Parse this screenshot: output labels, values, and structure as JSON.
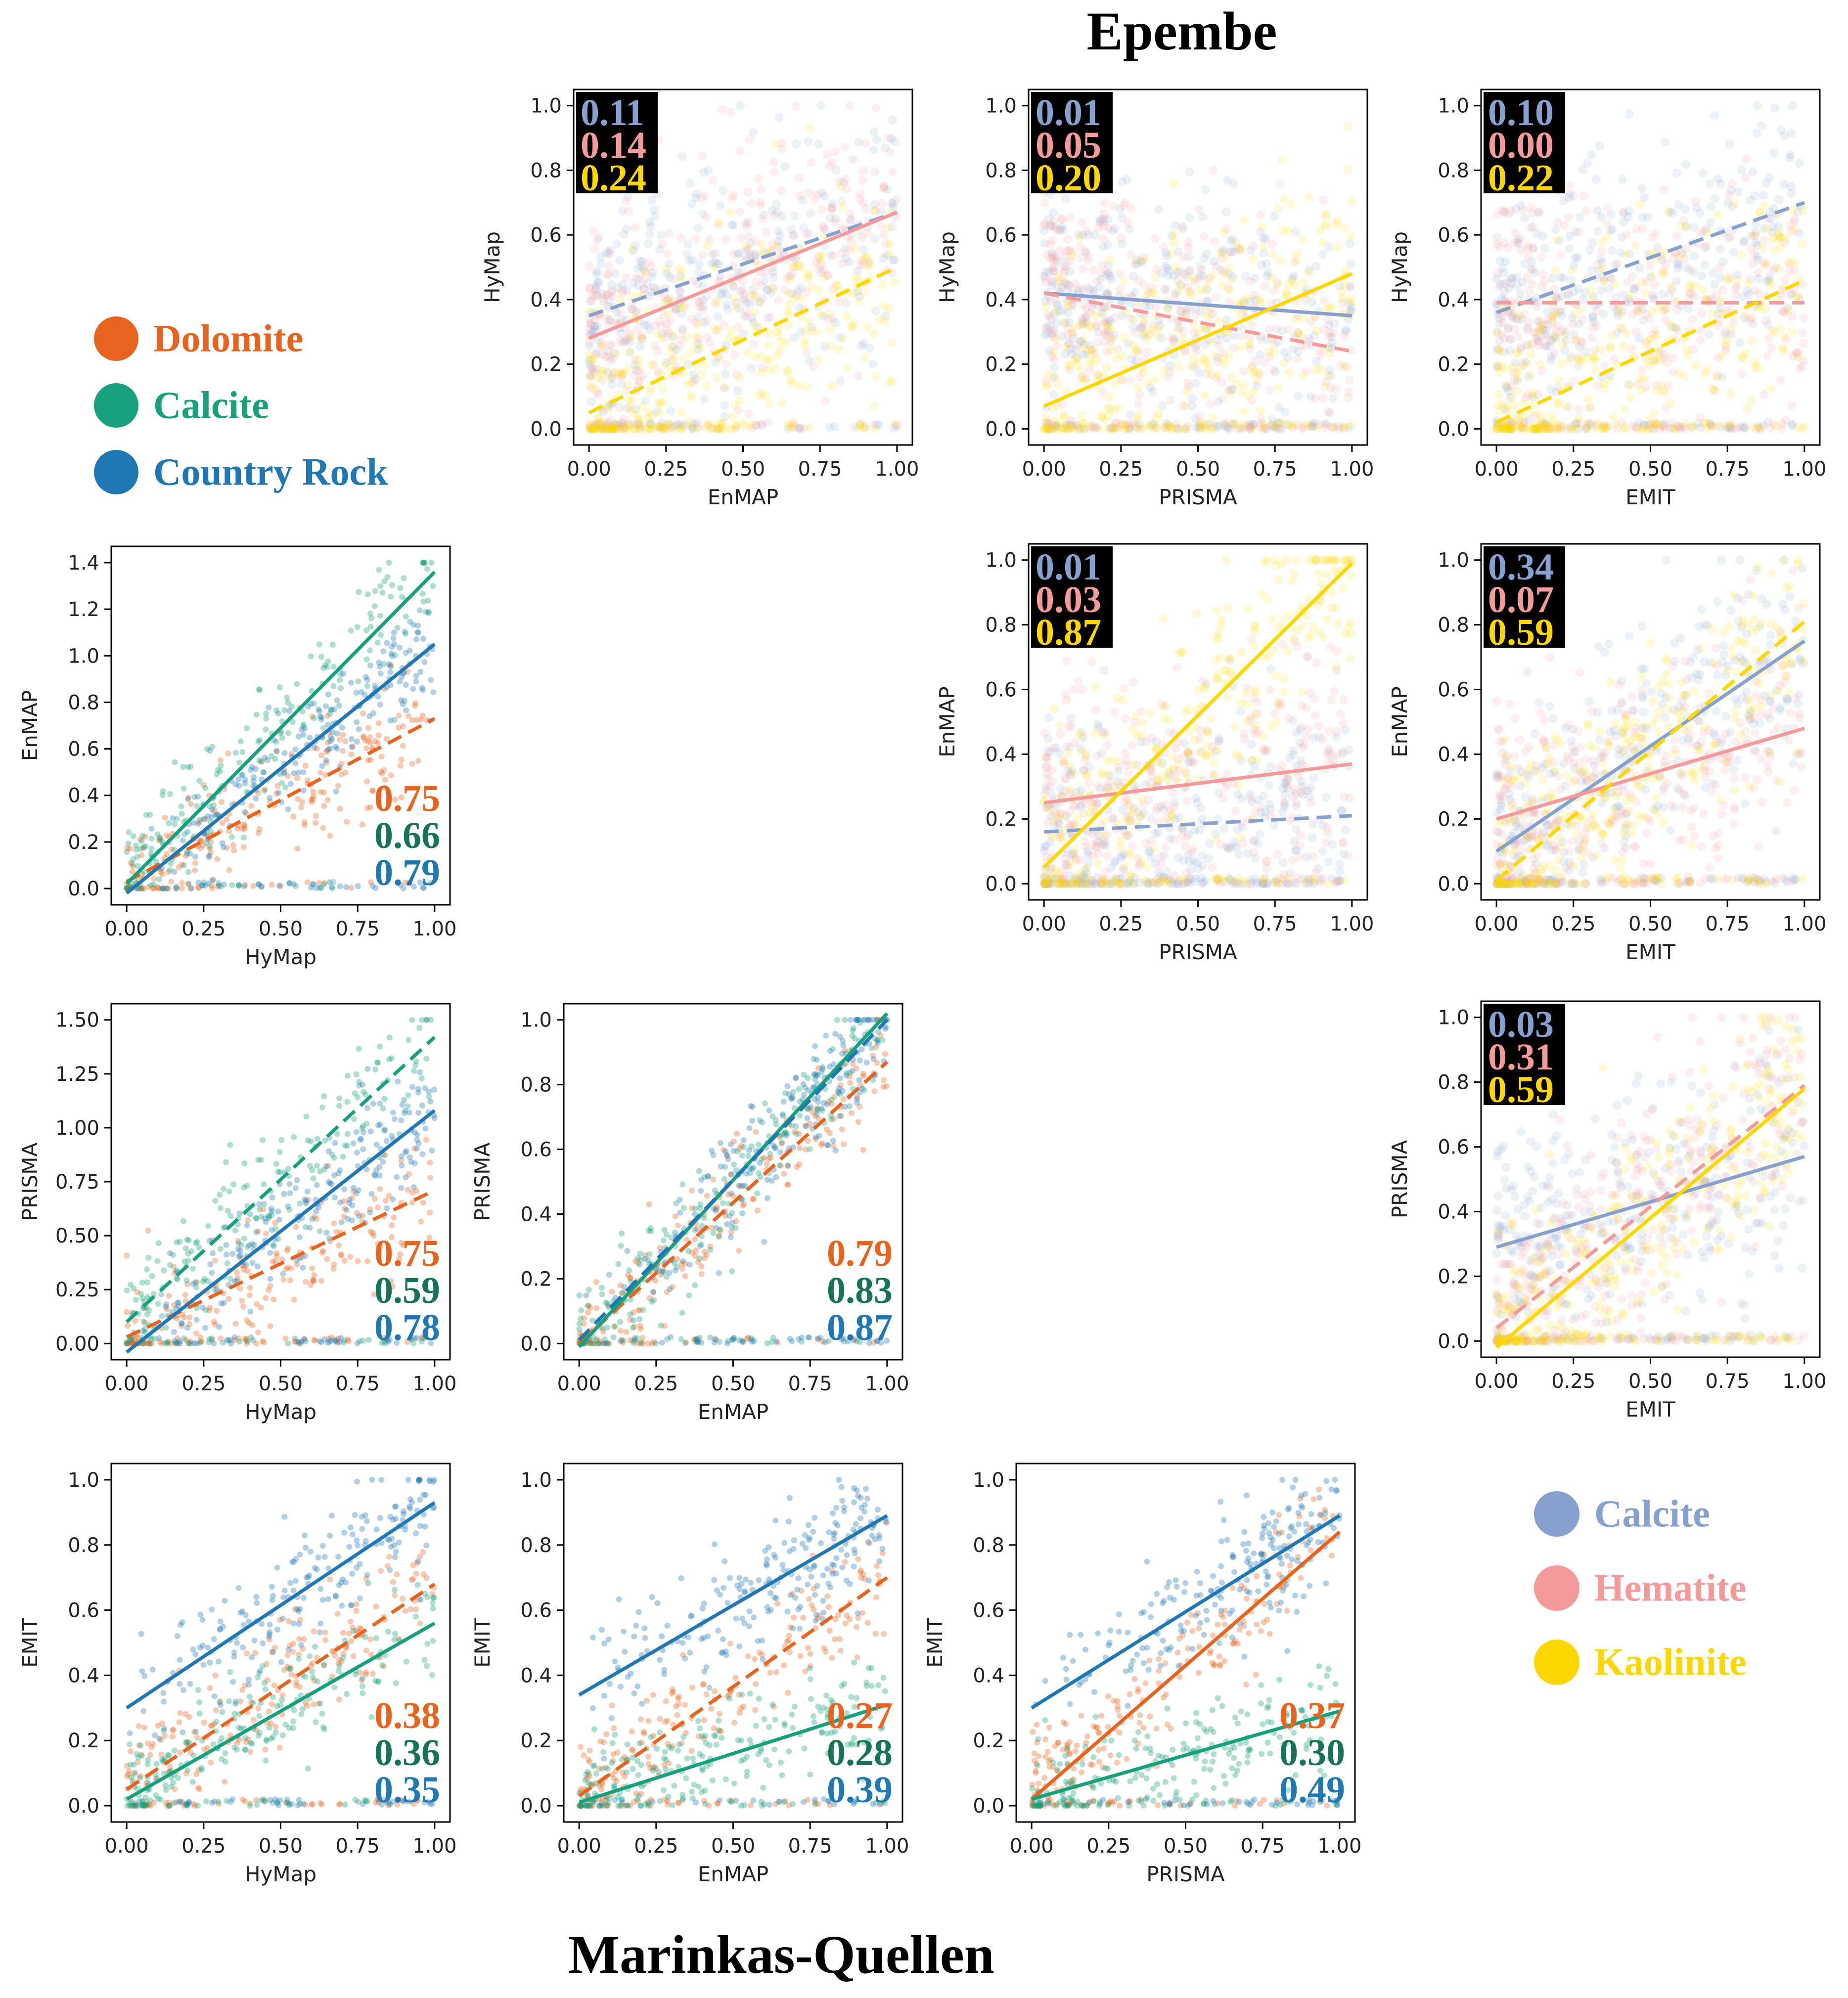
{
  "titles": {
    "top": "Epembe",
    "bottom": "Marinkas-Quellen"
  },
  "legends": {
    "marinkas": {
      "items": [
        {
          "label": "Dolomite",
          "color": "#e8641e"
        },
        {
          "label": "Calcite",
          "color": "#16a07c"
        },
        {
          "label": "Country Rock",
          "color": "#1f77b4"
        }
      ]
    },
    "epembe": {
      "items": [
        {
          "label": "Calcite",
          "color": "#86a0d0"
        },
        {
          "label": "Hematite",
          "color": "#f59a9a"
        },
        {
          "label": "Kaolinite",
          "color": "#ffd700"
        }
      ]
    }
  },
  "chart_data": [
    {
      "id": "epembe-enmap-hymap",
      "site": "Epembe",
      "type": "scatter",
      "xlabel": "EnMAP",
      "ylabel": "HyMap",
      "xlim": [
        0,
        1
      ],
      "ylim": [
        0,
        1
      ],
      "xticks": [
        "0.00",
        "0.25",
        "0.50",
        "0.75",
        "1.00"
      ],
      "yticks": [
        "0.0",
        "0.2",
        "0.4",
        "0.6",
        "0.8",
        "1.0"
      ],
      "r2_labels": [
        "0.11",
        "0.14",
        "0.24"
      ],
      "r2_colors": [
        "#86a0d0",
        "#f59a9a",
        "#ffd700"
      ],
      "fit_lines": [
        {
          "series": "Calcite",
          "color": "#86a0d0",
          "dashed": true,
          "y0": 0.35,
          "y1": 0.67
        },
        {
          "series": "Hematite",
          "color": "#f59a9a",
          "dashed": false,
          "y0": 0.28,
          "y1": 0.67
        },
        {
          "series": "Kaolinite",
          "color": "#ffd700",
          "dashed": true,
          "y0": 0.05,
          "y1": 0.5
        }
      ]
    },
    {
      "id": "epembe-prisma-hymap",
      "site": "Epembe",
      "type": "scatter",
      "xlabel": "PRISMA",
      "ylabel": "HyMap",
      "xlim": [
        0,
        1
      ],
      "ylim": [
        0,
        1
      ],
      "xticks": [
        "0.00",
        "0.25",
        "0.50",
        "0.75",
        "1.00"
      ],
      "yticks": [
        "0.0",
        "0.2",
        "0.4",
        "0.6",
        "0.8",
        "1.0"
      ],
      "r2_labels": [
        "0.01",
        "0.05",
        "0.20"
      ],
      "r2_colors": [
        "#86a0d0",
        "#f59a9a",
        "#ffd700"
      ],
      "fit_lines": [
        {
          "series": "Calcite",
          "color": "#86a0d0",
          "dashed": false,
          "y0": 0.42,
          "y1": 0.35
        },
        {
          "series": "Hematite",
          "color": "#f59a9a",
          "dashed": true,
          "y0": 0.42,
          "y1": 0.24
        },
        {
          "series": "Kaolinite",
          "color": "#ffd700",
          "dashed": false,
          "y0": 0.07,
          "y1": 0.48
        }
      ]
    },
    {
      "id": "epembe-emit-hymap",
      "site": "Epembe",
      "type": "scatter",
      "xlabel": "EMIT",
      "ylabel": "HyMap",
      "xlim": [
        0,
        1
      ],
      "ylim": [
        0,
        1
      ],
      "xticks": [
        "0.00",
        "0.25",
        "0.50",
        "0.75",
        "1.00"
      ],
      "yticks": [
        "0.0",
        "0.2",
        "0.4",
        "0.6",
        "0.8",
        "1.0"
      ],
      "r2_labels": [
        "0.10",
        "0.00",
        "0.22"
      ],
      "r2_colors": [
        "#86a0d0",
        "#f59a9a",
        "#ffd700"
      ],
      "fit_lines": [
        {
          "series": "Calcite",
          "color": "#86a0d0",
          "dashed": true,
          "y0": 0.36,
          "y1": 0.7
        },
        {
          "series": "Hematite",
          "color": "#f59a9a",
          "dashed": true,
          "y0": 0.39,
          "y1": 0.39
        },
        {
          "series": "Kaolinite",
          "color": "#ffd700",
          "dashed": true,
          "y0": 0.02,
          "y1": 0.46
        }
      ]
    },
    {
      "id": "marinkas-hymap-enmap",
      "site": "Marinkas-Quellen",
      "type": "scatter",
      "xlabel": "HyMap",
      "ylabel": "EnMAP",
      "xlim": [
        0,
        1
      ],
      "ylim": [
        0,
        1.4
      ],
      "xticks": [
        "0.00",
        "0.25",
        "0.50",
        "0.75",
        "1.00"
      ],
      "yticks": [
        "0.0",
        "0.2",
        "0.4",
        "0.6",
        "0.8",
        "1.0",
        "1.2",
        "1.4"
      ],
      "r2_labels": [
        "0.75",
        "0.66",
        "0.79"
      ],
      "r2_colors": [
        "#e8641e",
        "#16735a",
        "#1f77b4"
      ],
      "fit_lines": [
        {
          "series": "Dolomite",
          "color": "#e8641e",
          "dashed": true,
          "y0": 0.03,
          "y1": 0.73
        },
        {
          "series": "Calcite",
          "color": "#16a07c",
          "dashed": false,
          "y0": 0.02,
          "y1": 1.36
        },
        {
          "series": "Country Rock",
          "color": "#1f77b4",
          "dashed": false,
          "y0": -0.02,
          "y1": 1.05
        }
      ]
    },
    {
      "id": "epembe-prisma-enmap",
      "site": "Epembe",
      "type": "scatter",
      "xlabel": "PRISMA",
      "ylabel": "EnMAP",
      "xlim": [
        0,
        1
      ],
      "ylim": [
        0,
        1
      ],
      "xticks": [
        "0.00",
        "0.25",
        "0.50",
        "0.75",
        "1.00"
      ],
      "yticks": [
        "0.0",
        "0.2",
        "0.4",
        "0.6",
        "0.8",
        "1.0"
      ],
      "r2_labels": [
        "0.01",
        "0.03",
        "0.87"
      ],
      "r2_colors": [
        "#86a0d0",
        "#f59a9a",
        "#ffd700"
      ],
      "fit_lines": [
        {
          "series": "Calcite",
          "color": "#86a0d0",
          "dashed": true,
          "y0": 0.16,
          "y1": 0.21
        },
        {
          "series": "Hematite",
          "color": "#f59a9a",
          "dashed": false,
          "y0": 0.25,
          "y1": 0.37
        },
        {
          "series": "Kaolinite",
          "color": "#ffd700",
          "dashed": false,
          "y0": 0.05,
          "y1": 0.99
        }
      ]
    },
    {
      "id": "epembe-emit-enmap",
      "site": "Epembe",
      "type": "scatter",
      "xlabel": "EMIT",
      "ylabel": "EnMAP",
      "xlim": [
        0,
        1
      ],
      "ylim": [
        0,
        1
      ],
      "xticks": [
        "0.00",
        "0.25",
        "0.50",
        "0.75",
        "1.00"
      ],
      "yticks": [
        "0.0",
        "0.2",
        "0.4",
        "0.6",
        "0.8",
        "1.0"
      ],
      "r2_labels": [
        "0.34",
        "0.07",
        "0.59"
      ],
      "r2_colors": [
        "#86a0d0",
        "#f59a9a",
        "#ffd700"
      ],
      "fit_lines": [
        {
          "series": "Calcite",
          "color": "#86a0d0",
          "dashed": false,
          "y0": 0.1,
          "y1": 0.75
        },
        {
          "series": "Hematite",
          "color": "#f59a9a",
          "dashed": false,
          "y0": 0.2,
          "y1": 0.48
        },
        {
          "series": "Kaolinite",
          "color": "#ffd700",
          "dashed": true,
          "y0": 0.01,
          "y1": 0.81
        }
      ]
    },
    {
      "id": "marinkas-hymap-prisma",
      "site": "Marinkas-Quellen",
      "type": "scatter",
      "xlabel": "HyMap",
      "ylabel": "PRISMA",
      "xlim": [
        0,
        1
      ],
      "ylim": [
        0,
        1.5
      ],
      "xticks": [
        "0.00",
        "0.25",
        "0.50",
        "0.75",
        "1.00"
      ],
      "yticks": [
        "0.00",
        "0.25",
        "0.50",
        "0.75",
        "1.00",
        "1.25",
        "1.50"
      ],
      "r2_labels": [
        "0.75",
        "0.59",
        "0.78"
      ],
      "r2_colors": [
        "#e8641e",
        "#16735a",
        "#1f77b4"
      ],
      "fit_lines": [
        {
          "series": "Dolomite",
          "color": "#e8641e",
          "dashed": true,
          "y0": 0.03,
          "y1": 0.71
        },
        {
          "series": "Calcite",
          "color": "#16a07c",
          "dashed": true,
          "y0": 0.1,
          "y1": 1.42
        },
        {
          "series": "Country Rock",
          "color": "#1f77b4",
          "dashed": false,
          "y0": -0.04,
          "y1": 1.08
        }
      ]
    },
    {
      "id": "marinkas-enmap-prisma",
      "site": "Marinkas-Quellen",
      "type": "scatter",
      "xlabel": "EnMAP",
      "ylabel": "PRISMA",
      "xlim": [
        0,
        1
      ],
      "ylim": [
        0,
        1
      ],
      "xticks": [
        "0.00",
        "0.25",
        "0.50",
        "0.75",
        "1.00"
      ],
      "yticks": [
        "0.0",
        "0.2",
        "0.4",
        "0.6",
        "0.8",
        "1.0"
      ],
      "r2_labels": [
        "0.79",
        "0.83",
        "0.87"
      ],
      "r2_colors": [
        "#e8641e",
        "#16735a",
        "#1f77b4"
      ],
      "fit_lines": [
        {
          "series": "Dolomite",
          "color": "#e8641e",
          "dashed": true,
          "y0": 0.0,
          "y1": 0.87
        },
        {
          "series": "Calcite",
          "color": "#16a07c",
          "dashed": false,
          "y0": -0.01,
          "y1": 1.02
        },
        {
          "series": "Country Rock",
          "color": "#1f77b4",
          "dashed": true,
          "y0": 0.01,
          "y1": 1.0
        }
      ]
    },
    {
      "id": "epembe-emit-prisma",
      "site": "Epembe",
      "type": "scatter",
      "xlabel": "EMIT",
      "ylabel": "PRISMA",
      "xlim": [
        0,
        1
      ],
      "ylim": [
        0,
        1
      ],
      "xticks": [
        "0.00",
        "0.25",
        "0.50",
        "0.75",
        "1.00"
      ],
      "yticks": [
        "0.0",
        "0.2",
        "0.4",
        "0.6",
        "0.8",
        "1.0"
      ],
      "r2_labels": [
        "0.03",
        "0.31",
        "0.59"
      ],
      "r2_colors": [
        "#86a0d0",
        "#f59a9a",
        "#ffd700"
      ],
      "fit_lines": [
        {
          "series": "Calcite",
          "color": "#86a0d0",
          "dashed": false,
          "y0": 0.29,
          "y1": 0.57
        },
        {
          "series": "Hematite",
          "color": "#f59a9a",
          "dashed": true,
          "y0": 0.04,
          "y1": 0.79
        },
        {
          "series": "Kaolinite",
          "color": "#ffd700",
          "dashed": false,
          "y0": -0.02,
          "y1": 0.78
        }
      ]
    },
    {
      "id": "marinkas-hymap-emit",
      "site": "Marinkas-Quellen",
      "type": "scatter",
      "xlabel": "HyMap",
      "ylabel": "EMIT",
      "xlim": [
        0,
        1
      ],
      "ylim": [
        0,
        1
      ],
      "xticks": [
        "0.00",
        "0.25",
        "0.50",
        "0.75",
        "1.00"
      ],
      "yticks": [
        "0.0",
        "0.2",
        "0.4",
        "0.6",
        "0.8",
        "1.0"
      ],
      "r2_labels": [
        "0.38",
        "0.36",
        "0.35"
      ],
      "r2_colors": [
        "#e8641e",
        "#16735a",
        "#1f77b4"
      ],
      "fit_lines": [
        {
          "series": "Dolomite",
          "color": "#e8641e",
          "dashed": true,
          "y0": 0.05,
          "y1": 0.68
        },
        {
          "series": "Calcite",
          "color": "#16a07c",
          "dashed": false,
          "y0": 0.02,
          "y1": 0.56
        },
        {
          "series": "Country Rock",
          "color": "#1f77b4",
          "dashed": false,
          "y0": 0.3,
          "y1": 0.93
        }
      ]
    },
    {
      "id": "marinkas-enmap-emit",
      "site": "Marinkas-Quellen",
      "type": "scatter",
      "xlabel": "EnMAP",
      "ylabel": "EMIT",
      "xlim": [
        0,
        1
      ],
      "ylim": [
        0,
        1
      ],
      "xticks": [
        "0.00",
        "0.25",
        "0.50",
        "0.75",
        "1.00"
      ],
      "yticks": [
        "0.0",
        "0.2",
        "0.4",
        "0.6",
        "0.8",
        "1.0"
      ],
      "r2_labels": [
        "0.27",
        "0.28",
        "0.39"
      ],
      "r2_colors": [
        "#e8641e",
        "#16735a",
        "#1f77b4"
      ],
      "fit_lines": [
        {
          "series": "Dolomite",
          "color": "#e8641e",
          "dashed": true,
          "y0": 0.03,
          "y1": 0.7
        },
        {
          "series": "Calcite",
          "color": "#16a07c",
          "dashed": false,
          "y0": 0.01,
          "y1": 0.31
        },
        {
          "series": "Country Rock",
          "color": "#1f77b4",
          "dashed": false,
          "y0": 0.34,
          "y1": 0.89
        }
      ]
    },
    {
      "id": "marinkas-prisma-emit",
      "site": "Marinkas-Quellen",
      "type": "scatter",
      "xlabel": "PRISMA",
      "ylabel": "EMIT",
      "xlim": [
        0,
        1
      ],
      "ylim": [
        0,
        1
      ],
      "xticks": [
        "0.00",
        "0.25",
        "0.50",
        "0.75",
        "1.00"
      ],
      "yticks": [
        "0.0",
        "0.2",
        "0.4",
        "0.6",
        "0.8",
        "1.0"
      ],
      "r2_labels": [
        "0.37",
        "0.30",
        "0.49"
      ],
      "r2_colors": [
        "#e8641e",
        "#16735a",
        "#1f77b4"
      ],
      "fit_lines": [
        {
          "series": "Dolomite",
          "color": "#e8641e",
          "dashed": false,
          "y0": 0.02,
          "y1": 0.84
        },
        {
          "series": "Calcite",
          "color": "#16a07c",
          "dashed": false,
          "y0": 0.02,
          "y1": 0.29
        },
        {
          "series": "Country Rock",
          "color": "#1f77b4",
          "dashed": false,
          "y0": 0.3,
          "y1": 0.89
        }
      ]
    }
  ]
}
